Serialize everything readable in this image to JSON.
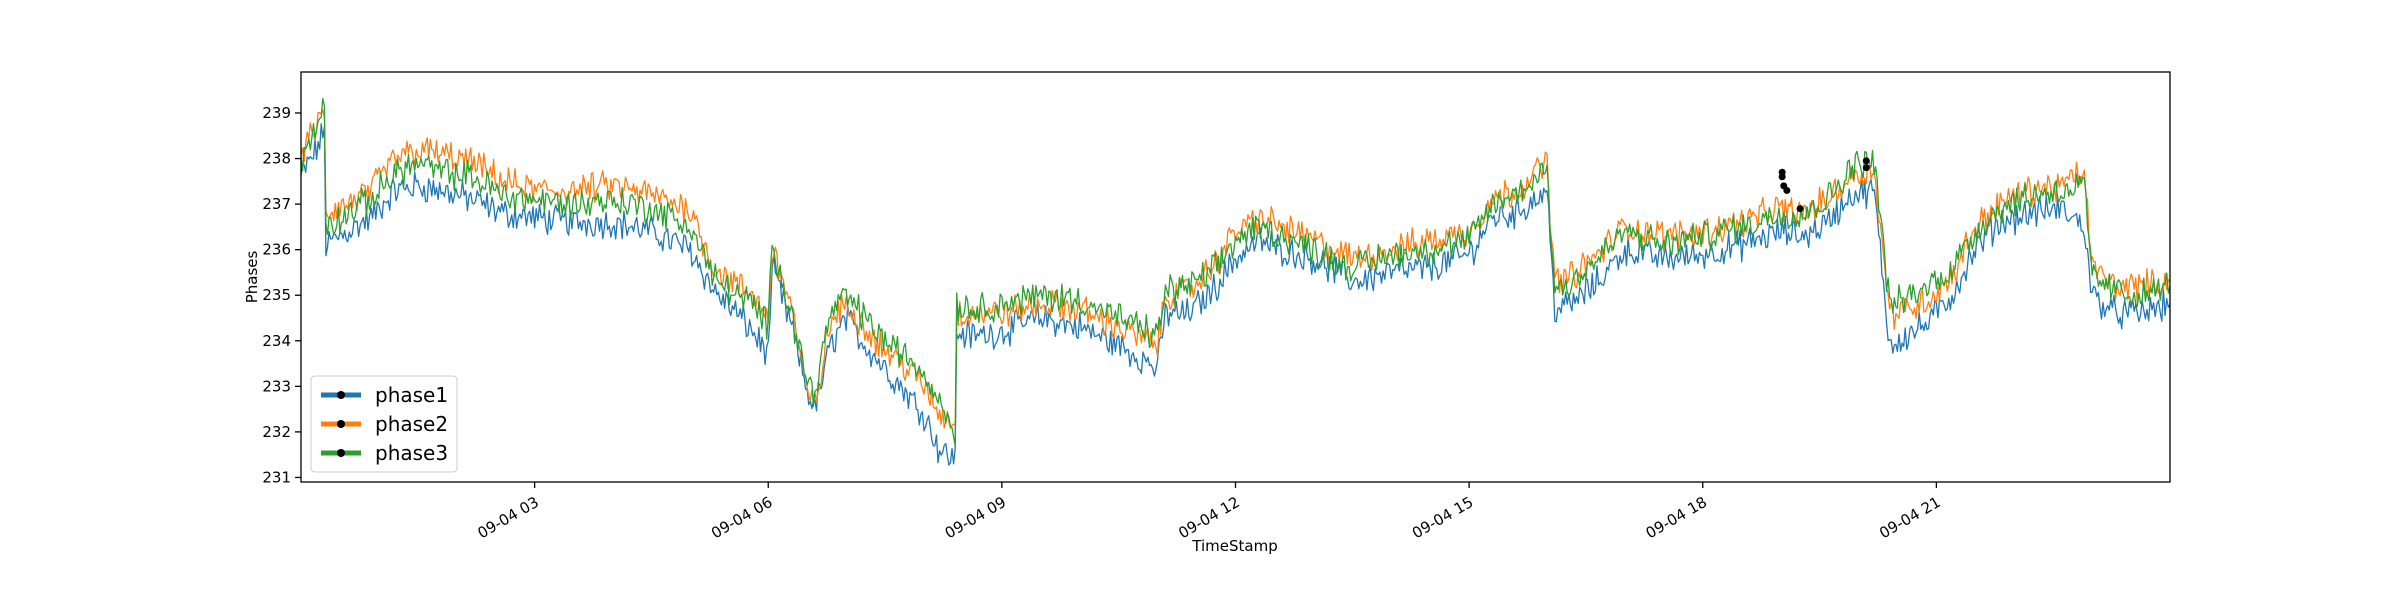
{
  "chart_data": {
    "type": "line",
    "xlabel": "TimeStamp",
    "ylabel": "Phases",
    "x_ticks": [
      "09-04 03",
      "09-04 06",
      "09-04 09",
      "09-04 12",
      "09-04 15",
      "09-04 18",
      "09-04 21"
    ],
    "x_tick_hours": [
      3,
      6,
      9,
      12,
      15,
      18,
      21
    ],
    "x_range_hours": [
      0,
      24
    ],
    "ylim": [
      230.9,
      239.9
    ],
    "y_ticks": [
      231,
      232,
      233,
      234,
      235,
      236,
      237,
      238,
      239
    ],
    "grid": false,
    "legend": "lower-left",
    "series": [
      {
        "name": "phase1",
        "color": "#1f77b4",
        "x_hours": [
          0,
          0.2,
          0.3,
          0.32,
          0.6,
          0.9,
          1.2,
          1.5,
          1.8,
          2.2,
          2.6,
          3.0,
          3.5,
          4.0,
          4.5,
          5.0,
          5.3,
          5.6,
          5.8,
          6.0,
          6.05,
          6.3,
          6.5,
          6.6,
          6.8,
          7.0,
          7.2,
          7.5,
          7.8,
          8.0,
          8.2,
          8.4,
          8.42,
          8.6,
          9.0,
          9.5,
          10.0,
          10.5,
          11.0,
          11.1,
          11.4,
          11.7,
          12.0,
          12.3,
          12.6,
          13.0,
          13.5,
          14.0,
          14.5,
          15.0,
          15.3,
          15.6,
          16.0,
          16.1,
          16.3,
          16.6,
          17.0,
          17.5,
          18.0,
          18.5,
          19.0,
          19.3,
          19.6,
          19.9,
          20.2,
          20.4,
          20.6,
          20.9,
          21.2,
          21.5,
          21.8,
          22.2,
          22.6,
          22.9,
          23.0,
          23.3,
          23.6,
          24.0
        ],
        "values": [
          237.6,
          238.2,
          238.6,
          236.1,
          236.4,
          236.7,
          237.3,
          237.4,
          237.3,
          237.1,
          236.8,
          236.7,
          236.6,
          236.6,
          236.4,
          236.0,
          235.1,
          234.6,
          234.2,
          233.7,
          235.6,
          234.3,
          232.9,
          232.5,
          233.9,
          234.5,
          234.0,
          233.4,
          232.8,
          232.4,
          231.6,
          231.4,
          234.2,
          234.1,
          234.2,
          234.5,
          234.3,
          233.9,
          233.4,
          234.6,
          234.6,
          235.1,
          235.8,
          236.2,
          236.0,
          235.8,
          235.3,
          235.5,
          235.6,
          235.9,
          236.7,
          236.8,
          237.3,
          234.7,
          234.8,
          235.2,
          236.0,
          235.8,
          235.9,
          236.1,
          236.4,
          236.3,
          236.6,
          237.2,
          237.3,
          233.9,
          234.1,
          234.4,
          235.0,
          236.0,
          236.6,
          236.8,
          236.9,
          236.5,
          235.0,
          234.6,
          234.6,
          234.8
        ]
      },
      {
        "name": "phase2",
        "color": "#ff7f0e",
        "x_hours": [
          0,
          0.2,
          0.3,
          0.32,
          0.6,
          0.9,
          1.2,
          1.5,
          1.8,
          2.2,
          2.6,
          3.0,
          3.5,
          4.0,
          4.5,
          5.0,
          5.3,
          5.6,
          5.8,
          6.0,
          6.05,
          6.3,
          6.5,
          6.6,
          6.8,
          7.0,
          7.2,
          7.5,
          7.8,
          8.0,
          8.2,
          8.4,
          8.42,
          8.6,
          9.0,
          9.5,
          10.0,
          10.5,
          11.0,
          11.1,
          11.4,
          11.7,
          12.0,
          12.3,
          12.6,
          13.0,
          13.5,
          14.0,
          14.5,
          15.0,
          15.3,
          15.6,
          16.0,
          16.1,
          16.3,
          16.6,
          17.0,
          17.5,
          18.0,
          18.5,
          19.0,
          19.3,
          19.6,
          19.9,
          20.2,
          20.4,
          20.6,
          20.9,
          21.2,
          21.5,
          21.8,
          22.2,
          22.6,
          22.9,
          23.0,
          23.3,
          23.6,
          24.0
        ],
        "values": [
          238.1,
          238.7,
          239.0,
          236.8,
          237.0,
          237.3,
          238.0,
          238.2,
          238.1,
          237.9,
          237.5,
          237.3,
          237.3,
          237.4,
          237.2,
          236.9,
          235.6,
          235.2,
          235.0,
          234.5,
          236.0,
          234.8,
          232.8,
          232.6,
          234.4,
          234.8,
          234.4,
          233.8,
          233.4,
          233.0,
          232.4,
          232.2,
          234.6,
          234.6,
          234.6,
          234.8,
          234.7,
          234.3,
          233.9,
          235.0,
          235.1,
          235.6,
          236.4,
          236.7,
          236.5,
          236.2,
          235.8,
          236.0,
          236.2,
          236.4,
          237.1,
          237.3,
          237.9,
          235.3,
          235.4,
          235.8,
          236.5,
          236.3,
          236.4,
          236.6,
          236.9,
          236.8,
          237.1,
          237.6,
          237.8,
          234.6,
          234.7,
          234.9,
          235.4,
          236.5,
          237.0,
          237.3,
          237.4,
          237.7,
          235.6,
          235.2,
          235.2,
          235.3
        ]
      },
      {
        "name": "phase3",
        "color": "#2ca02c",
        "x_hours": [
          0,
          0.2,
          0.3,
          0.32,
          0.6,
          0.9,
          1.2,
          1.5,
          1.8,
          2.2,
          2.6,
          3.0,
          3.5,
          4.0,
          4.5,
          5.0,
          5.3,
          5.6,
          5.8,
          6.0,
          6.05,
          6.3,
          6.5,
          6.6,
          6.8,
          7.0,
          7.2,
          7.5,
          7.8,
          8.0,
          8.2,
          8.4,
          8.42,
          8.6,
          9.0,
          9.5,
          10.0,
          10.5,
          11.0,
          11.1,
          11.4,
          11.7,
          12.0,
          12.3,
          12.6,
          13.0,
          13.5,
          14.0,
          14.5,
          15.0,
          15.3,
          15.6,
          16.0,
          16.1,
          16.3,
          16.6,
          17.0,
          17.5,
          18.0,
          18.5,
          19.0,
          19.3,
          19.6,
          19.9,
          20.2,
          20.4,
          20.6,
          20.9,
          21.2,
          21.5,
          21.8,
          22.2,
          22.6,
          22.9,
          23.0,
          23.3,
          23.6,
          24.0
        ],
        "values": [
          238.0,
          238.6,
          239.3,
          236.5,
          236.8,
          237.1,
          237.7,
          237.9,
          237.7,
          237.6,
          237.2,
          237.1,
          237.0,
          237.1,
          236.9,
          236.5,
          235.4,
          235.0,
          234.8,
          234.3,
          236.2,
          234.6,
          233.1,
          232.9,
          234.6,
          235.0,
          234.6,
          234.0,
          233.6,
          233.3,
          232.7,
          232.0,
          234.8,
          234.7,
          234.8,
          235.0,
          234.9,
          234.5,
          234.1,
          235.1,
          235.2,
          235.5,
          236.2,
          236.5,
          236.3,
          236.0,
          235.6,
          235.9,
          236.0,
          236.2,
          237.0,
          237.2,
          237.8,
          235.1,
          235.3,
          235.7,
          236.4,
          236.1,
          236.3,
          236.5,
          236.8,
          236.8,
          237.1,
          237.8,
          238.0,
          234.8,
          234.9,
          235.2,
          235.6,
          236.4,
          236.9,
          237.2,
          237.3,
          237.4,
          235.4,
          235.1,
          235.0,
          235.2
        ]
      }
    ],
    "markers": {
      "color": "#000000",
      "points": [
        {
          "x_hours": 19.02,
          "value": 237.7
        },
        {
          "x_hours": 19.02,
          "value": 237.6
        },
        {
          "x_hours": 19.04,
          "value": 237.4
        },
        {
          "x_hours": 19.08,
          "value": 237.3
        },
        {
          "x_hours": 19.25,
          "value": 236.9
        },
        {
          "x_hours": 20.1,
          "value": 237.95
        },
        {
          "x_hours": 20.1,
          "value": 237.8
        }
      ]
    }
  }
}
